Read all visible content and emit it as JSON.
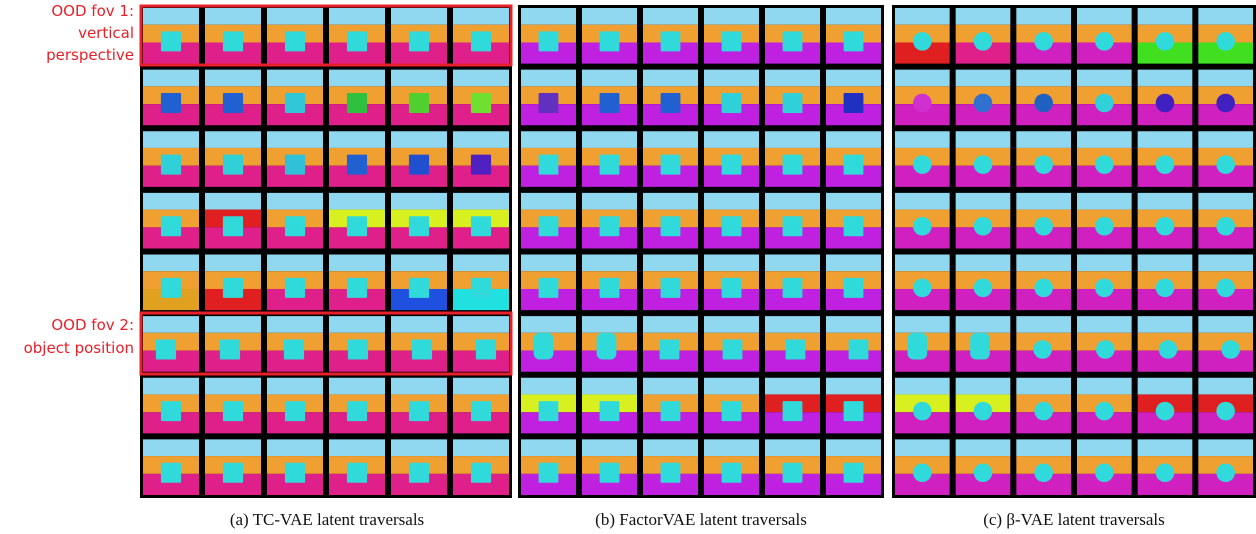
{
  "annotations": [
    {
      "lines": [
        "OOD fov 1:",
        "vertical",
        "perspective"
      ]
    },
    {
      "lines": [
        "OOD fov 2:",
        "object position"
      ]
    }
  ],
  "panels": [
    {
      "caption": "(a) TC-VAE latent traversals"
    },
    {
      "caption": "(b) FactorVAE latent traversals"
    },
    {
      "caption": "(c) β-VAE latent traversals"
    }
  ]
}
